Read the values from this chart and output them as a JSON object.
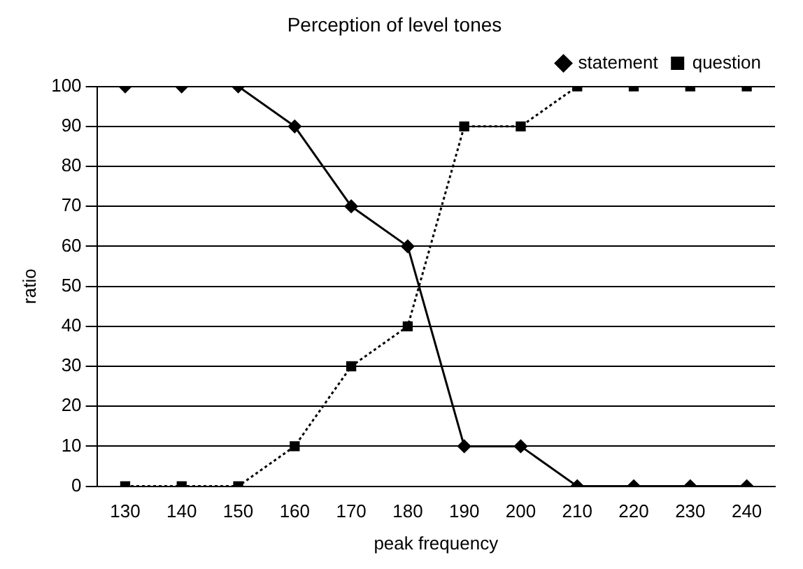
{
  "chart_data": {
    "type": "line",
    "title": "Perception of level tones",
    "xlabel": "peak frequency",
    "ylabel": "ratio",
    "categories": [
      "130",
      "140",
      "150",
      "160",
      "170",
      "180",
      "190",
      "200",
      "210",
      "220",
      "230",
      "240"
    ],
    "series": [
      {
        "name": "statement",
        "color": "#000000",
        "marker": "diamond",
        "line_style": "solid",
        "values": [
          100,
          100,
          100,
          90,
          70,
          60,
          10,
          10,
          0,
          0,
          0,
          0
        ]
      },
      {
        "name": "question",
        "color": "#000000",
        "marker": "square",
        "line_style": "dotted",
        "values": [
          0,
          0,
          0,
          10,
          30,
          40,
          90,
          90,
          100,
          100,
          100,
          100
        ]
      }
    ],
    "ylim": [
      0,
      100
    ],
    "yticks": [
      0,
      10,
      20,
      30,
      40,
      50,
      60,
      70,
      80,
      90,
      100
    ],
    "grid": "y",
    "legend": "top right"
  }
}
